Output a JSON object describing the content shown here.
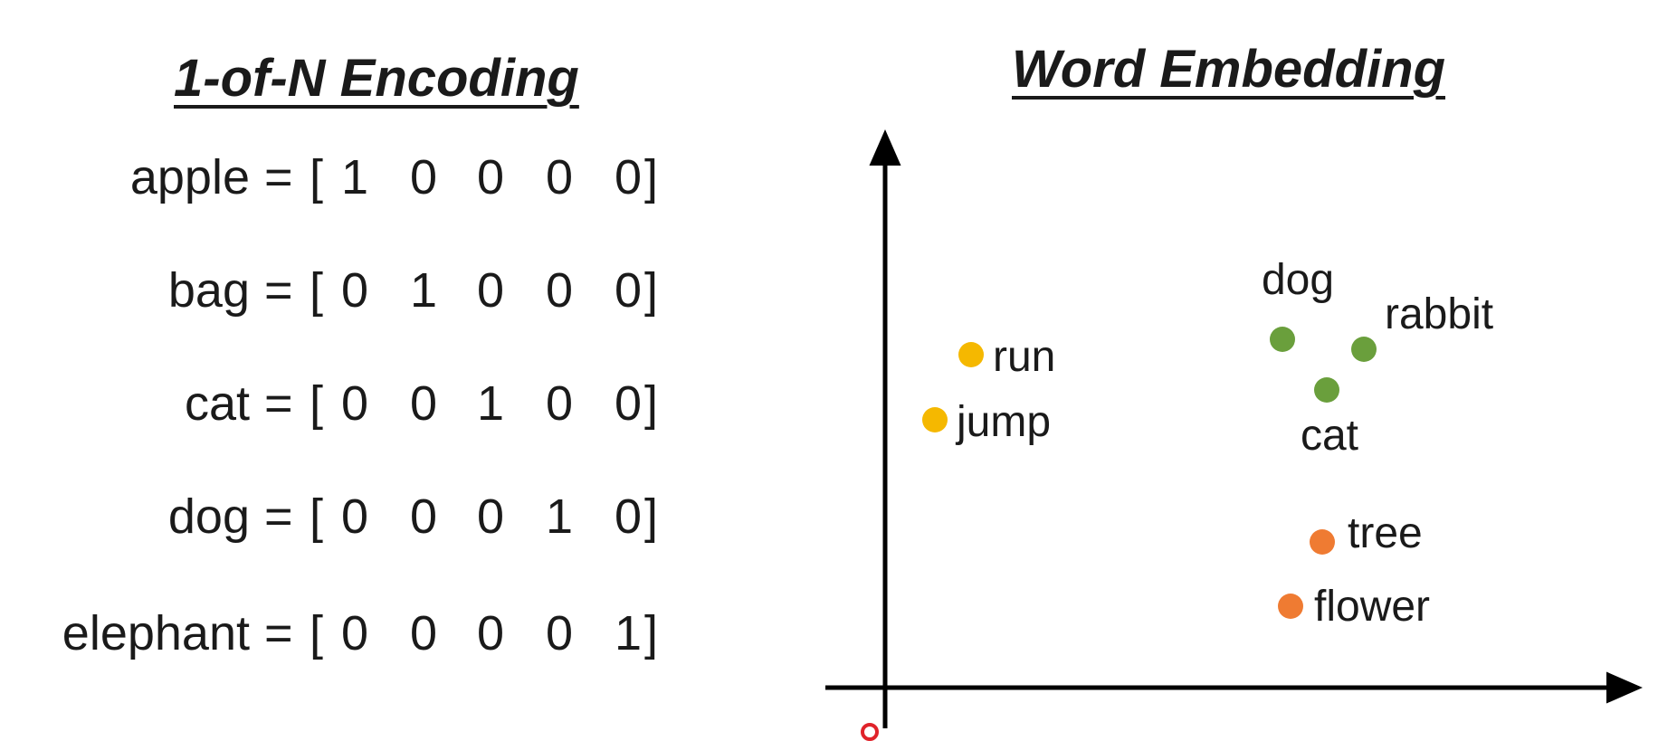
{
  "left_panel": {
    "title": "1-of-N Encoding",
    "rows": [
      {
        "word": "apple",
        "equals": "=",
        "open": "[",
        "close": "]",
        "vector": [
          "1",
          "0",
          "0",
          "0",
          "0"
        ]
      },
      {
        "word": "bag",
        "equals": "=",
        "open": "[",
        "close": "]",
        "vector": [
          "0",
          "1",
          "0",
          "0",
          "0"
        ]
      },
      {
        "word": "cat",
        "equals": "=",
        "open": "[",
        "close": "]",
        "vector": [
          "0",
          "0",
          "1",
          "0",
          "0"
        ]
      },
      {
        "word": "dog",
        "equals": "=",
        "open": "[",
        "close": "]",
        "vector": [
          "0",
          "0",
          "0",
          "1",
          "0"
        ]
      },
      {
        "word": "elephant",
        "equals": "=",
        "open": "[",
        "close": "]",
        "vector": [
          "0",
          "0",
          "0",
          "0",
          "1"
        ]
      }
    ]
  },
  "right_panel": {
    "title": "Word Embedding",
    "colors": {
      "yellow": "#f5b800",
      "green": "#6a9f3c",
      "orange": "#ef7b32",
      "axis": "#000000"
    },
    "points": [
      {
        "label": "run",
        "group": "yellow"
      },
      {
        "label": "jump",
        "group": "yellow"
      },
      {
        "label": "dog",
        "group": "green"
      },
      {
        "label": "rabbit",
        "group": "green"
      },
      {
        "label": "cat",
        "group": "green"
      },
      {
        "label": "tree",
        "group": "orange"
      },
      {
        "label": "flower",
        "group": "orange"
      }
    ]
  }
}
